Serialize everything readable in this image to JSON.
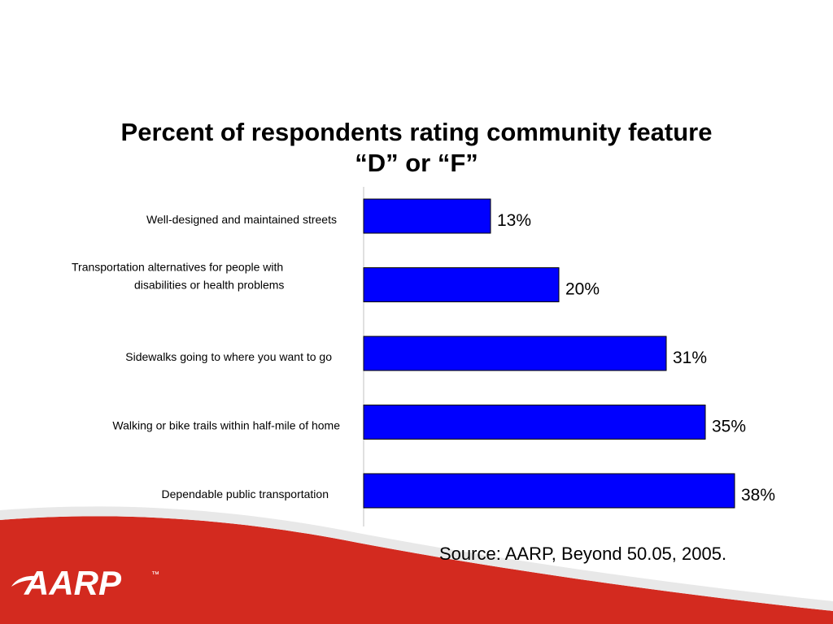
{
  "title": {
    "line1": "Percent of respondents rating community feature",
    "line2": "“D” or “F”"
  },
  "source": "Source:  AARP, Beyond 50.05, 2005.",
  "logo": {
    "text": "AARP",
    "mark": "™",
    "color": "#ffffff"
  },
  "colors": {
    "bar": "#0000ff",
    "footer_red": "#d32a1f"
  },
  "chart_data": {
    "type": "bar",
    "orientation": "horizontal",
    "title": "Percent of respondents rating community feature “D” or “F”",
    "categories": [
      [
        "Well-designed and maintained streets"
      ],
      [
        "Transportation alternatives for people with",
        "disabilities or health problems"
      ],
      [
        "Sidewalks going to where you want to go"
      ],
      [
        "Walking or bike trails within half-mile of home"
      ],
      [
        "Dependable public transportation"
      ]
    ],
    "values": [
      13,
      20,
      31,
      35,
      38
    ],
    "data_labels": [
      "13%",
      "20%",
      "31%",
      "35%",
      "38%"
    ],
    "xlim": [
      0,
      38
    ],
    "grid": false,
    "legend": "none"
  }
}
